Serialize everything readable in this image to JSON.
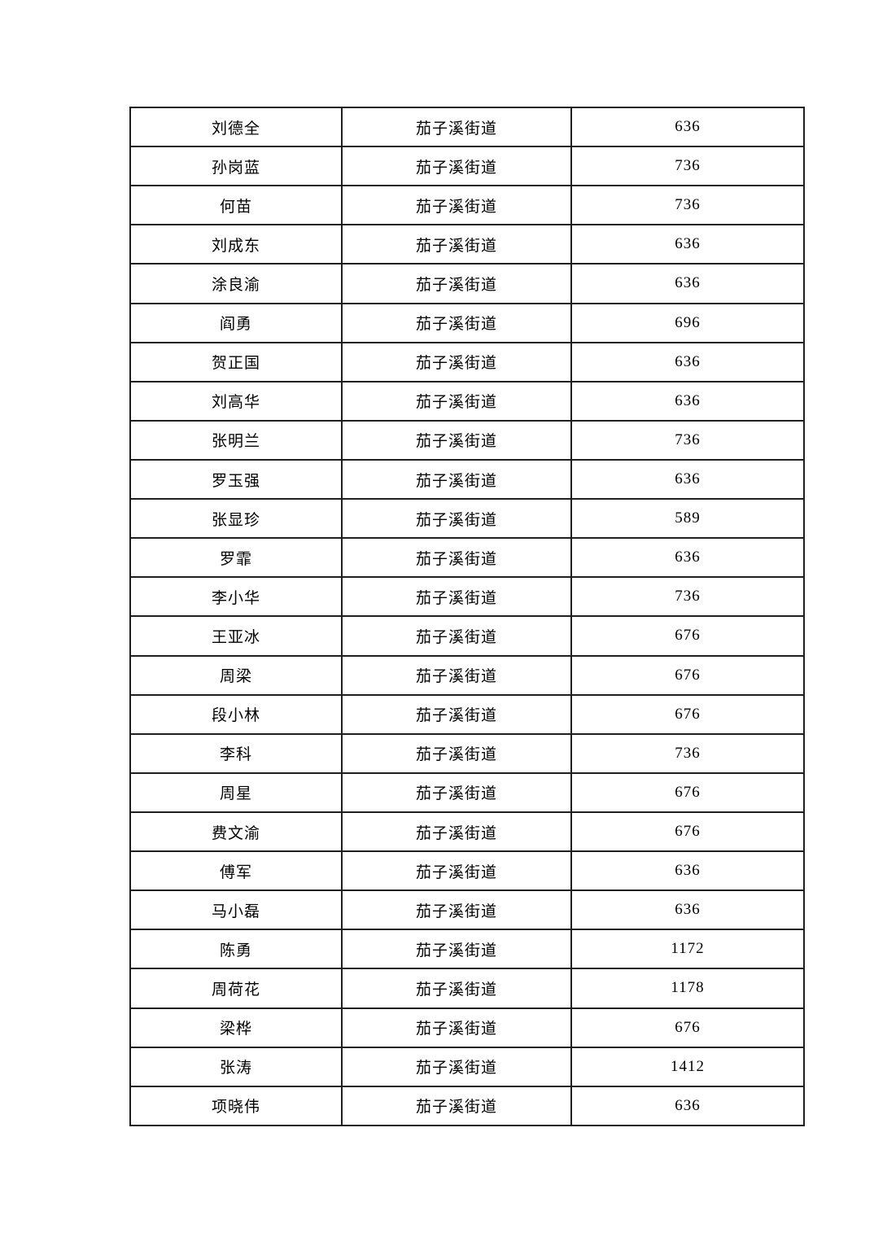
{
  "page": {
    "background_color": "#ffffff",
    "text_color": "#000000",
    "table_border_color": "#1f1f1f"
  },
  "table": {
    "columns": [
      "name",
      "district",
      "amount"
    ],
    "rows": [
      [
        "刘德全",
        "茄子溪街道",
        "636"
      ],
      [
        "孙岗蓝",
        "茄子溪街道",
        "736"
      ],
      [
        "何苗",
        "茄子溪街道",
        "736"
      ],
      [
        "刘成东",
        "茄子溪街道",
        "636"
      ],
      [
        "涂良渝",
        "茄子溪街道",
        "636"
      ],
      [
        "阎勇",
        "茄子溪街道",
        "696"
      ],
      [
        "贺正国",
        "茄子溪街道",
        "636"
      ],
      [
        "刘高华",
        "茄子溪街道",
        "636"
      ],
      [
        "张明兰",
        "茄子溪街道",
        "736"
      ],
      [
        "罗玉强",
        "茄子溪街道",
        "636"
      ],
      [
        "张显珍",
        "茄子溪街道",
        "589"
      ],
      [
        "罗霏",
        "茄子溪街道",
        "636"
      ],
      [
        "李小华",
        "茄子溪街道",
        "736"
      ],
      [
        "王亚冰",
        "茄子溪街道",
        "676"
      ],
      [
        "周梁",
        "茄子溪街道",
        "676"
      ],
      [
        "段小林",
        "茄子溪街道",
        "676"
      ],
      [
        "李科",
        "茄子溪街道",
        "736"
      ],
      [
        "周星",
        "茄子溪街道",
        "676"
      ],
      [
        "费文渝",
        "茄子溪街道",
        "676"
      ],
      [
        "傅军",
        "茄子溪街道",
        "636"
      ],
      [
        "马小磊",
        "茄子溪街道",
        "636"
      ],
      [
        "陈勇",
        "茄子溪街道",
        "1172"
      ],
      [
        "周荷花",
        "茄子溪街道",
        "1178"
      ],
      [
        "梁桦",
        "茄子溪街道",
        "676"
      ],
      [
        "张涛",
        "茄子溪街道",
        "1412"
      ],
      [
        "项晓伟",
        "茄子溪街道",
        "636"
      ]
    ]
  }
}
